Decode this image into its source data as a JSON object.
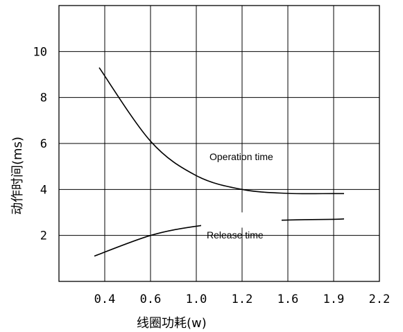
{
  "chart_data": {
    "type": "line",
    "xlabel": "线圈功耗(w)",
    "ylabel": "动作时间(ms)",
    "x_ticks": [
      "0.4",
      "0.6",
      "1.0",
      "1.2",
      "1.6",
      "1.9",
      "2.2"
    ],
    "y_ticks": [
      "2",
      "4",
      "6",
      "8",
      "10"
    ],
    "ylim": [
      0,
      12
    ],
    "grid": true,
    "series": [
      {
        "name": "Operation time",
        "x": [
          "0.4",
          "0.6",
          "1.0",
          "1.2",
          "1.6",
          "1.9",
          "2.0"
        ],
        "y": [
          9.3,
          6.1,
          4.6,
          4.0,
          3.83,
          3.82,
          3.82
        ]
      },
      {
        "name": "Release time",
        "x": [
          "0.4",
          "0.6",
          "1.0",
          "1.2",
          "1.6",
          "1.9",
          "2.0"
        ],
        "y": [
          1.1,
          2.0,
          2.4,
          2.6,
          2.67,
          2.7,
          2.72
        ]
      }
    ]
  }
}
